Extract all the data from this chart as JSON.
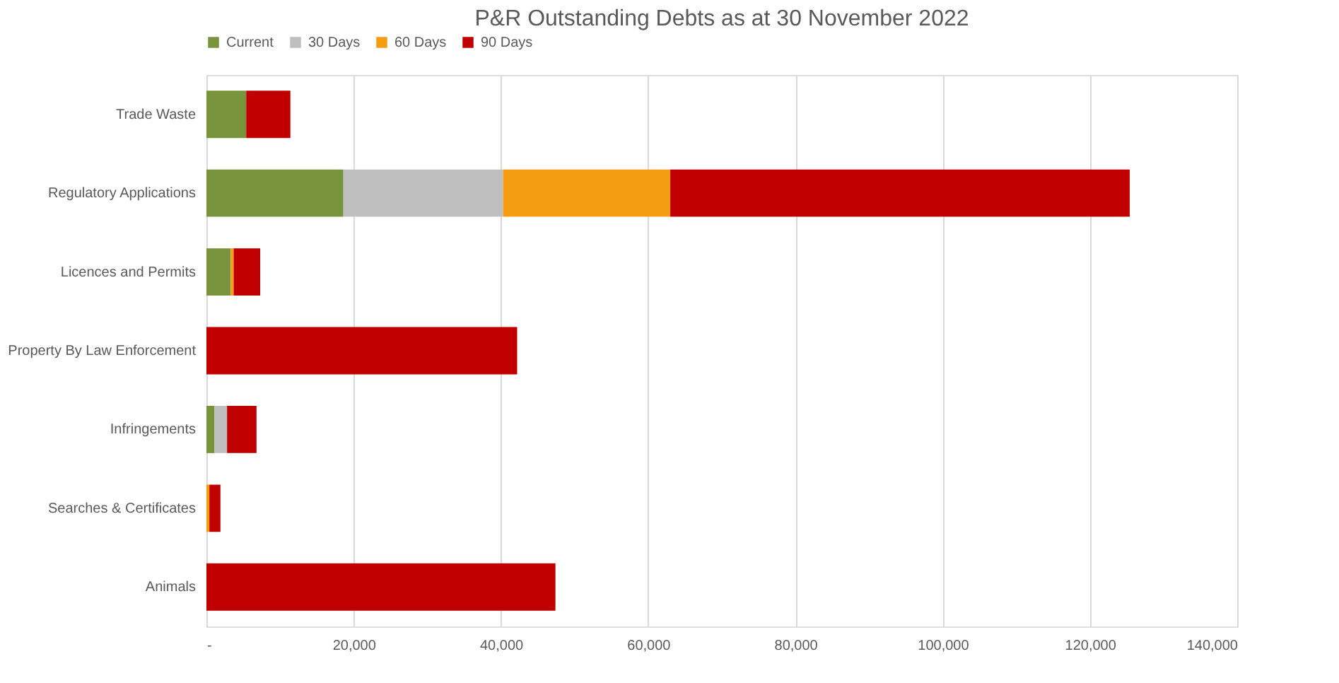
{
  "chart_data": {
    "type": "bar",
    "orientation": "horizontal",
    "stacked": true,
    "title": "P&R Outstanding Debts as at 30 November 2022",
    "categories": [
      "Trade Waste",
      "Regulatory Applications",
      "Licences and Permits",
      "Property By Law Enforcement",
      "Infringements",
      "Searches & Certificates",
      "Animals"
    ],
    "series": [
      {
        "name": "Current",
        "color": "#77933c",
        "values": [
          5400,
          18600,
          3300,
          0,
          1100,
          0,
          0
        ]
      },
      {
        "name": "30 Days",
        "color": "#bfbfbf",
        "values": [
          0,
          21700,
          0,
          0,
          1700,
          0,
          0
        ]
      },
      {
        "name": "60 Days",
        "color": "#f59d12",
        "values": [
          0,
          22700,
          400,
          0,
          0,
          400,
          0
        ]
      },
      {
        "name": "90 Days",
        "color": "#c00000",
        "values": [
          6000,
          62400,
          3600,
          42200,
          4000,
          1500,
          47400
        ]
      }
    ],
    "xlim": [
      0,
      140000
    ],
    "xticks": [
      {
        "value": 0,
        "label": "-"
      },
      {
        "value": 20000,
        "label": "20,000"
      },
      {
        "value": 40000,
        "label": "40,000"
      },
      {
        "value": 60000,
        "label": "60,000"
      },
      {
        "value": 80000,
        "label": "80,000"
      },
      {
        "value": 100000,
        "label": "100,000"
      },
      {
        "value": 120000,
        "label": "120,000"
      },
      {
        "value": 140000,
        "label": "140,000"
      }
    ],
    "grid": "x",
    "legend": "top"
  }
}
